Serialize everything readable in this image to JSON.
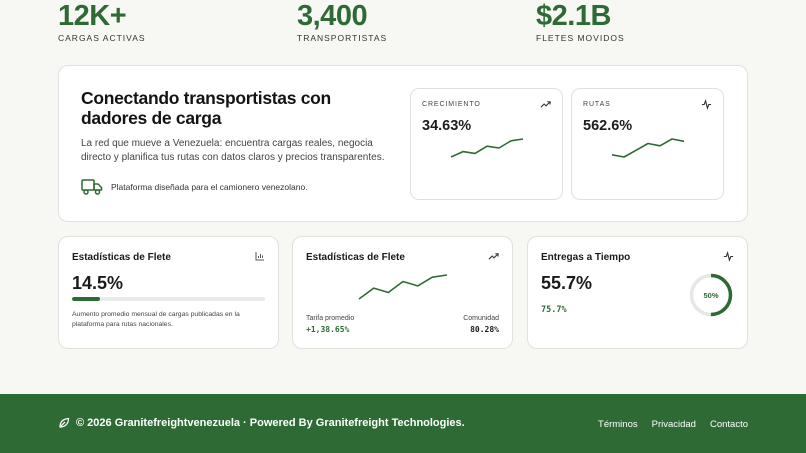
{
  "stats": [
    {
      "value": "12K+",
      "label": "CARGAS ACTIVAS"
    },
    {
      "value": "3,400",
      "label": "TRANSPORTISTAS"
    },
    {
      "value": "$2.1B",
      "label": "FLETES MOVIDOS"
    }
  ],
  "hero": {
    "title": "Conectando transportistas con dadores de carga",
    "description": "La red que mueve a Venezuela: encuentra cargas reales, negocia directo y planifica tus rutas con datos claros y precios transparentes.",
    "note": "Plataforma diseñada para el camionero venezolano.",
    "metrics": [
      {
        "label": "CRECIMIENTO",
        "value": "34.63%",
        "icon": "trending-up-icon",
        "trend": [
          2,
          5,
          4,
          8,
          7,
          11,
          12
        ]
      },
      {
        "label": "RUTAS",
        "value": "562.6%",
        "icon": "activity-icon",
        "trend": [
          4,
          3,
          6,
          9,
          8,
          11,
          10
        ]
      }
    ]
  },
  "cards": {
    "freight_progress": {
      "title": "Estadísticas de Flete",
      "icon": "bar-chart-icon",
      "value": "14.5%",
      "progress": 0.145,
      "description": "Aumento promedio mensual de cargas publicadas en la plataforma para rutas nacionales."
    },
    "freight_trend": {
      "title": "Estadísticas de Flete",
      "icon": "trending-up-icon",
      "trend": [
        2,
        7,
        5,
        10,
        8,
        12,
        13
      ],
      "left_label": "Tarifa promedio",
      "left_value": "+1,38.65%",
      "right_label": "Comunidad",
      "right_value": "80.28%"
    },
    "delivery": {
      "title": "Entregas a Tiempo",
      "icon": "activity-icon",
      "value": "55.7%",
      "subvalue": "75.7%",
      "ring_label": "50%",
      "ring_fraction": 0.5
    }
  },
  "footer": {
    "copyright": "© 2026 Granitefreightvenezuela · Powered By Granitefreight Technologies.",
    "links": [
      "Términos",
      "Privacidad",
      "Contacto"
    ]
  },
  "colors": {
    "accent": "#2e6b34",
    "background": "#f7f7f4",
    "border": "#dfe2dc"
  }
}
